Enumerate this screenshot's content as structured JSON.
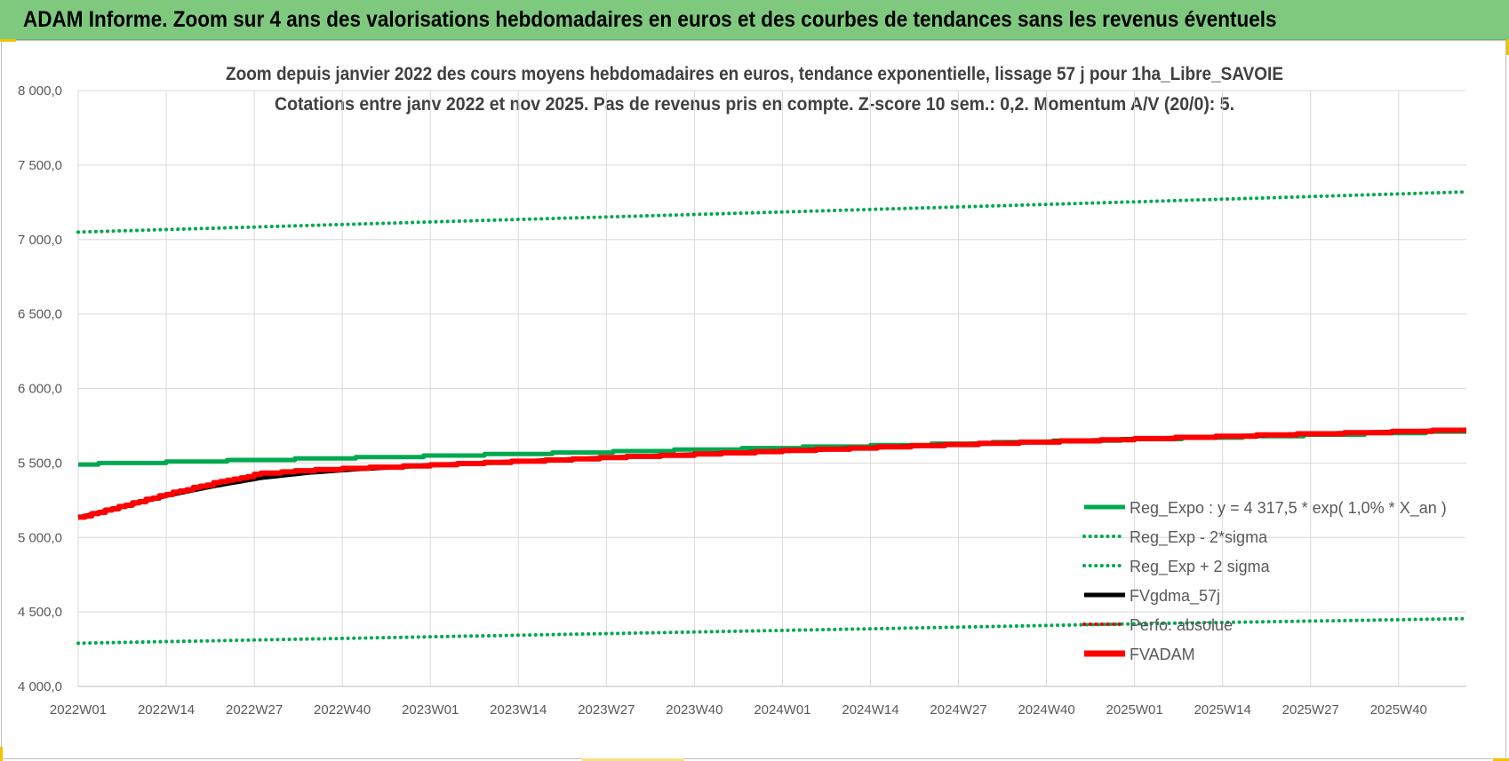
{
  "page": {
    "header_title": "ADAM Informe. Zoom sur 4 ans des valorisations hebdomadaires en euros et des courbes de tendances sans les revenus éventuels"
  },
  "chart_data": {
    "type": "line",
    "title": "Zoom depuis janvier 2022 des cours moyens hebdomadaires en euros, tendance exponentielle, lissage 57 j pour 1ha_Libre_SAVOIE",
    "subtitle": "Cotations entre janv 2022 et nov 2025. Pas de revenus pris en compte. Z-score 10 sem.: 0,2. Momentum A/V (20/0): 5.",
    "xlabel": "",
    "ylabel": "",
    "ylim": [
      4000,
      8000
    ],
    "yticks": [
      "4 000,0",
      "4 500,0",
      "5 000,0",
      "5 500,0",
      "6 000,0",
      "6 500,0",
      "7 000,0",
      "7 500,0",
      "8 000,0"
    ],
    "xticks": [
      "2022W01",
      "2022W14",
      "2022W27",
      "2022W40",
      "2023W01",
      "2023W14",
      "2023W27",
      "2023W40",
      "2024W01",
      "2024W14",
      "2024W27",
      "2024W40",
      "2025W01",
      "2025W14",
      "2025W27",
      "2025W40"
    ],
    "x_weeks": [
      0,
      205
    ],
    "grid": true,
    "legend_position": "right",
    "series": [
      {
        "name": "Reg_Expo : y = 4 317,5 * exp( 1,0% *  X_an )",
        "style": "solid",
        "color": "#00a84f",
        "x": [
          0,
          52,
          104,
          156,
          205
        ],
        "y": [
          5492,
          5547,
          5602,
          5658,
          5712
        ]
      },
      {
        "name": "Reg_Exp - 2*sigma",
        "style": "dotted",
        "color": "#00a84f",
        "x": [
          0,
          52,
          104,
          156,
          205
        ],
        "y": [
          4290,
          4333,
          4376,
          4420,
          4455
        ]
      },
      {
        "name": "Reg_Exp + 2 sigma",
        "style": "dotted",
        "color": "#00a84f",
        "x": [
          0,
          52,
          104,
          156,
          205
        ],
        "y": [
          7050,
          7118,
          7185,
          7253,
          7320
        ]
      },
      {
        "name": "FVgdma_57j",
        "style": "solid",
        "color": "#000000",
        "x": [
          0,
          6,
          13,
          20,
          27,
          34,
          41,
          52,
          78,
          104,
          130,
          156,
          182,
          205
        ],
        "y": [
          5133,
          5200,
          5280,
          5345,
          5400,
          5435,
          5458,
          5485,
          5535,
          5580,
          5625,
          5660,
          5695,
          5722
        ]
      },
      {
        "name": "Perfo. absolue",
        "style": "dotted",
        "color": "#e00000",
        "x": [],
        "y": []
      },
      {
        "name": "FVADAM",
        "style": "solid",
        "color": "#ff0000",
        "x": [
          0,
          6,
          13,
          20,
          27,
          34,
          41,
          52,
          78,
          104,
          130,
          156,
          182,
          205
        ],
        "y": [
          5133,
          5205,
          5290,
          5365,
          5430,
          5450,
          5465,
          5485,
          5535,
          5580,
          5625,
          5660,
          5695,
          5722
        ]
      }
    ]
  }
}
